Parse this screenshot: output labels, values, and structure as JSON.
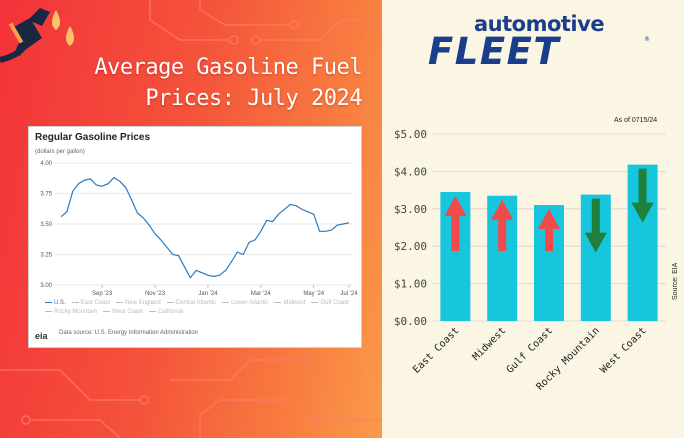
{
  "headline": [
    "Average Gasoline Fuel",
    "Prices: July 2024"
  ],
  "brand": {
    "top": "automotive",
    "main": "FLEET",
    "reg": "®"
  },
  "colors": {
    "bar": "#17c5dc",
    "up_arrow": "#f04a4a",
    "down_arrow": "#1f7f3b",
    "line": "#2a7bbf",
    "brand": "#1a3d8c"
  },
  "eia_chart": {
    "title": "Regular Gasoline Prices",
    "subtitle": "(dollars per gallon)",
    "legend": [
      "U.S.",
      "East Coast",
      "New England",
      "Central Atlantic",
      "Lower Atlantic",
      "Midwest",
      "Gulf Coast",
      "Rocky Mountain",
      "West Coast",
      "California"
    ],
    "logo": "eia",
    "source_text": "Data source: U.S. Energy Information Administration"
  },
  "bar_chart": {
    "as_of": "As of 0715/24",
    "source_label": "Source: EIA"
  },
  "chart_data": [
    {
      "type": "line",
      "title": "Regular Gasoline Prices",
      "subtitle": "(dollars per gallon)",
      "xlabel": "",
      "ylabel": "",
      "ylim": [
        3.0,
        4.0
      ],
      "yticks": [
        "4.00",
        "3.75",
        "3.50",
        "3.25",
        "3.00"
      ],
      "xticks": [
        "Sep '23",
        "Nov '23",
        "Jan '24",
        "Mar '24",
        "May '24",
        "Jul '24"
      ],
      "grid": true,
      "series": [
        {
          "name": "U.S.",
          "x_week": [
            0,
            1,
            2,
            3,
            4,
            5,
            6,
            7,
            8,
            9,
            10,
            11,
            12,
            13,
            14,
            15,
            16,
            17,
            18,
            19,
            20,
            21,
            22,
            23,
            24,
            25,
            26,
            27,
            28,
            29,
            30,
            31,
            32,
            33,
            34,
            35,
            36,
            37,
            38,
            39,
            40,
            41,
            42,
            43,
            44,
            45,
            46,
            47,
            48,
            49
          ],
          "values": [
            3.56,
            3.6,
            3.77,
            3.83,
            3.86,
            3.87,
            3.82,
            3.81,
            3.83,
            3.88,
            3.85,
            3.8,
            3.7,
            3.59,
            3.55,
            3.49,
            3.42,
            3.37,
            3.31,
            3.25,
            3.24,
            3.15,
            3.06,
            3.12,
            3.1,
            3.08,
            3.07,
            3.08,
            3.12,
            3.19,
            3.27,
            3.25,
            3.35,
            3.37,
            3.44,
            3.53,
            3.52,
            3.58,
            3.62,
            3.66,
            3.65,
            3.62,
            3.6,
            3.58,
            3.44,
            3.44,
            3.45,
            3.49,
            3.5,
            3.51
          ]
        }
      ]
    },
    {
      "type": "bar",
      "categories": [
        "East Coast",
        "Midwest",
        "Gulf Coast",
        "Rocky Mountain",
        "West Coast"
      ],
      "values": [
        3.45,
        3.35,
        3.1,
        3.38,
        4.18
      ],
      "trend": [
        "up",
        "up",
        "up",
        "down",
        "down"
      ],
      "ylim": [
        0,
        5
      ],
      "yticks": [
        "$0.00",
        "$1.00",
        "$2.00",
        "$3.00",
        "$4.00",
        "$5.00"
      ],
      "xlabel": "",
      "ylabel": "",
      "grid": true
    }
  ]
}
